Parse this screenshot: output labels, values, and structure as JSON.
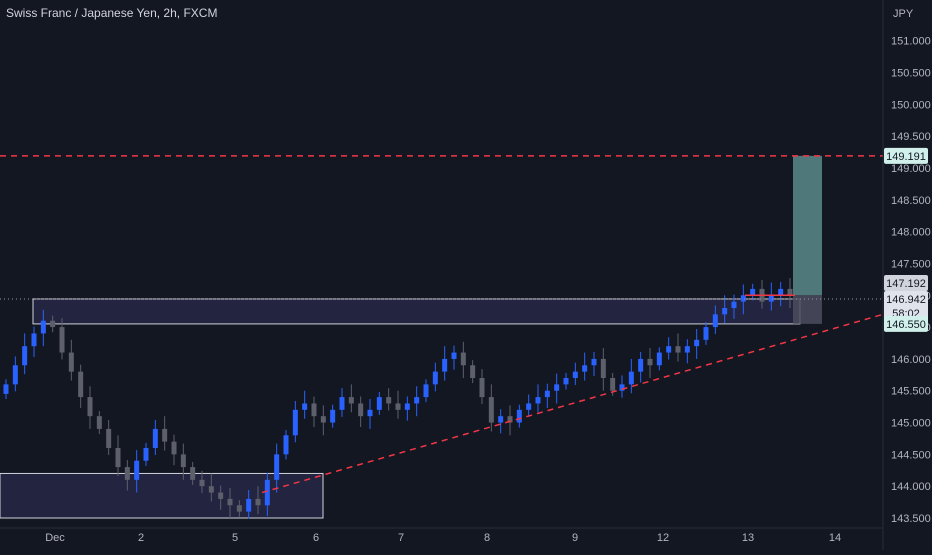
{
  "header": {
    "title": "Swiss Franc / Japanese Yen, 2h, FXCM"
  },
  "axis": {
    "currency_label": "JPY"
  },
  "colors": {
    "background": "#131722",
    "bull": "#2962ff",
    "bear": "#5d606b",
    "resistance_line": "#f23645",
    "trendline": "#f23645",
    "zone_fill": "#2a2a4a",
    "zone_border": "#d1d4dc",
    "target_fill": "#5b8a8a",
    "stop_fill": "#4c4c5e",
    "price_tag_current": "#d1d4dc",
    "price_tag_target": "#d1f0ec"
  },
  "chart_data": {
    "type": "candlestick",
    "title": "Swiss Franc / Japanese Yen, 2h, FXCM",
    "ylim": [
      143.5,
      151.2
    ],
    "y_ticks": [
      "151.000",
      "150.500",
      "150.000",
      "149.500",
      "149.000",
      "148.500",
      "148.000",
      "147.500",
      "147.000",
      "146.500",
      "146.000",
      "145.500",
      "145.000",
      "144.500",
      "144.000",
      "143.500"
    ],
    "x_ticks": [
      "Dec",
      "2",
      "5",
      "6",
      "7",
      "8",
      "9",
      "12",
      "13",
      "14"
    ],
    "price_labels": {
      "target": "149.191",
      "current_high": "147.192",
      "current": "146.942",
      "countdown": "58:02",
      "entry": "146.550"
    },
    "levels": {
      "resistance": 149.191,
      "entry": 146.55,
      "last": 146.942,
      "target": 149.191
    },
    "zones": [
      {
        "name": "supply-demand-zone",
        "from": "Dec",
        "to": "13",
        "low": 146.55,
        "high": 146.942
      },
      {
        "name": "lower-demand-zone",
        "from": "start",
        "to": "6",
        "low": 143.5,
        "high": 144.2
      }
    ],
    "trendline": {
      "start": [
        "6",
        143.9
      ],
      "end": [
        "14",
        146.8
      ]
    },
    "series_close": [
      145.6,
      145.9,
      146.2,
      146.4,
      146.6,
      146.5,
      146.1,
      145.8,
      145.4,
      145.1,
      144.9,
      144.6,
      144.3,
      144.1,
      144.4,
      144.6,
      144.9,
      144.7,
      144.5,
      144.3,
      144.1,
      144.0,
      143.9,
      143.8,
      143.7,
      143.6,
      143.8,
      143.7,
      144.1,
      144.5,
      144.8,
      145.2,
      145.3,
      145.1,
      145.0,
      145.2,
      145.4,
      145.3,
      145.1,
      145.2,
      145.4,
      145.3,
      145.2,
      145.3,
      145.4,
      145.6,
      145.8,
      146.0,
      146.1,
      145.9,
      145.7,
      145.4,
      145.0,
      145.1,
      145.0,
      145.2,
      145.3,
      145.4,
      145.5,
      145.6,
      145.7,
      145.8,
      145.9,
      146.0,
      145.7,
      145.5,
      145.6,
      145.8,
      146.0,
      145.9,
      146.1,
      146.2,
      146.1,
      146.2,
      146.3,
      146.5,
      146.7,
      146.8,
      146.9,
      147.0,
      147.1,
      146.9,
      147.0,
      147.1,
      147.0
    ],
    "series_direction": []
  }
}
